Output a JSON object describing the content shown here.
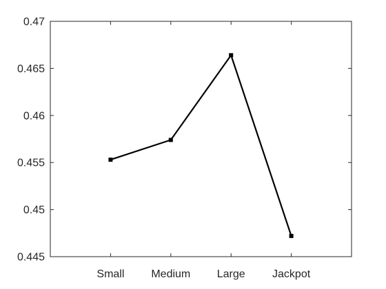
{
  "chart_data": {
    "type": "line",
    "categories": [
      "Small",
      "Medium",
      "Large",
      "Jackpot"
    ],
    "series": [
      {
        "values": [
          0.4553,
          0.4574,
          0.4664,
          0.4472
        ]
      }
    ],
    "ylim": [
      0.445,
      0.47
    ],
    "yticks": [
      0.445,
      0.45,
      0.455,
      0.46,
      0.465,
      0.47
    ],
    "ytick_labels": [
      "0.445",
      "0.45",
      "0.455",
      "0.46",
      "0.465",
      "0.47"
    ],
    "title": "",
    "xlabel": "",
    "ylabel": "",
    "grid": false,
    "box": true,
    "line_color": "#000000",
    "axis_color": "#262626"
  }
}
